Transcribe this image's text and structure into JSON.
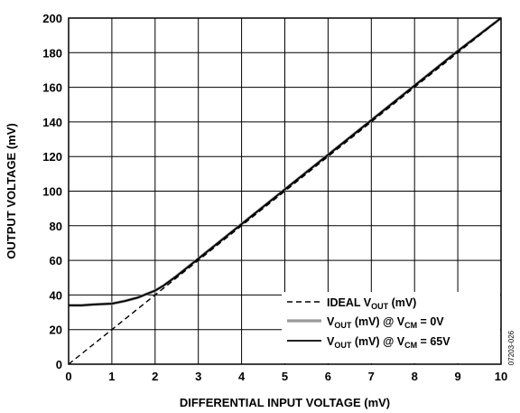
{
  "chart_data": {
    "type": "line",
    "title": "",
    "xlabel": "DIFFERENTIAL INPUT VOLTAGE (mV)",
    "ylabel": "OUTPUT VOLTAGE (mV)",
    "xlim": [
      0,
      10
    ],
    "ylim": [
      0,
      200
    ],
    "x_ticks": [
      0,
      1,
      2,
      3,
      4,
      5,
      6,
      7,
      8,
      9,
      10
    ],
    "y_ticks": [
      0,
      20,
      40,
      60,
      80,
      100,
      120,
      140,
      160,
      180,
      200
    ],
    "grid": true,
    "legend_position": "bottom-right",
    "series": [
      {
        "name_parts": [
          {
            "text": "IDEAL V",
            "sub": false
          },
          {
            "text": "OUT",
            "sub": true
          },
          {
            "text": " (mV)",
            "sub": false
          }
        ],
        "color": "#000000",
        "dash": "dashed",
        "x": [
          0,
          10
        ],
        "y": [
          0,
          200
        ]
      },
      {
        "name_parts": [
          {
            "text": "V",
            "sub": false
          },
          {
            "text": "OUT",
            "sub": true
          },
          {
            "text": " (mV) @ V",
            "sub": false
          },
          {
            "text": "CM",
            "sub": true
          },
          {
            "text": " = 0V",
            "sub": false
          }
        ],
        "color": "#9a9a9a",
        "dash": "solid",
        "x": [
          0,
          0.3,
          0.6,
          1.0,
          1.3,
          1.6,
          1.8,
          2.0,
          2.2,
          2.5,
          3,
          4,
          5,
          6,
          7,
          8,
          9,
          10
        ],
        "y": [
          34,
          34,
          34.5,
          35,
          36.5,
          38.5,
          40.5,
          42.5,
          45.5,
          51,
          61,
          81,
          101,
          121,
          141,
          161,
          181,
          200
        ]
      },
      {
        "name_parts": [
          {
            "text": "V",
            "sub": false
          },
          {
            "text": "OUT",
            "sub": true
          },
          {
            "text": " (mV) @ V",
            "sub": false
          },
          {
            "text": "CM",
            "sub": true
          },
          {
            "text": " = 65V",
            "sub": false
          }
        ],
        "color": "#000000",
        "dash": "solid",
        "x": [
          0,
          0.3,
          0.6,
          1.0,
          1.3,
          1.6,
          1.8,
          2.0,
          2.2,
          2.5,
          3,
          4,
          5,
          6,
          7,
          8,
          9,
          10
        ],
        "y": [
          34,
          34,
          34.5,
          35,
          36.5,
          38.5,
          40.5,
          42.5,
          45.5,
          51,
          61,
          81,
          101,
          121,
          141,
          161,
          181,
          200
        ]
      }
    ],
    "figure_id": "07203-026"
  }
}
